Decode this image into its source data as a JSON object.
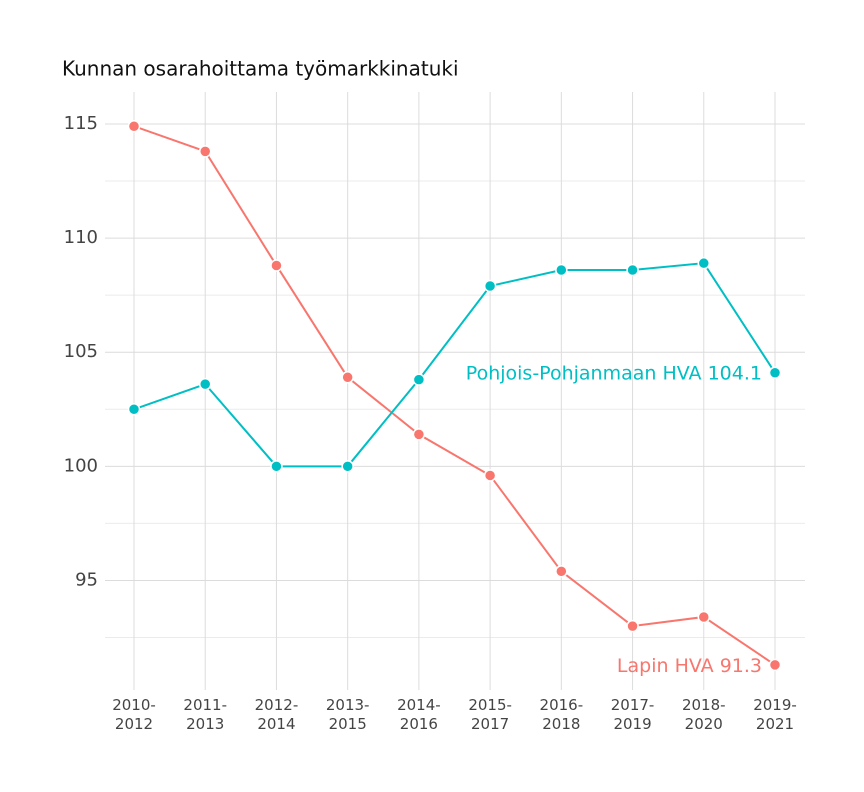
{
  "chart_data": {
    "type": "line",
    "title": "Kunnan osarahoittama työmarkkinatuki",
    "categories": [
      "2010-2012",
      "2011-2013",
      "2012-2014",
      "2013-2015",
      "2014-2016",
      "2015-2017",
      "2016-2018",
      "2017-2019",
      "2018-2020",
      "2019-2021"
    ],
    "series": [
      {
        "name": "Lapin HVA",
        "color": "#f8766d",
        "values": [
          114.9,
          113.8,
          108.8,
          103.9,
          101.4,
          99.6,
          95.4,
          93.0,
          93.4,
          91.3
        ]
      },
      {
        "name": "Pohjois-Pohjanmaan HVA",
        "color": "#00bfc4",
        "values": [
          102.5,
          103.6,
          100,
          100,
          103.8,
          107.9,
          108.6,
          108.6,
          108.9,
          104.1
        ]
      }
    ],
    "ylim": [
      90.2,
      116.4
    ],
    "yticks": [
      95,
      100,
      105,
      110,
      115
    ],
    "grid": true,
    "minor_grid": true
  }
}
